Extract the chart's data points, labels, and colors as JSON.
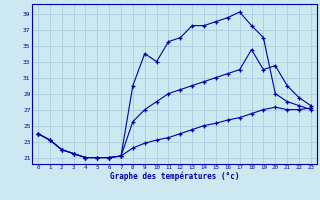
{
  "xlabel": "Graphe des températures (°c)",
  "bg_color": "#cce8f0",
  "grid_color": "#aaccdd",
  "line_color": "#0000aa",
  "x_ticks": [
    0,
    1,
    2,
    3,
    4,
    5,
    6,
    7,
    8,
    9,
    10,
    11,
    12,
    13,
    14,
    15,
    16,
    17,
    18,
    19,
    20,
    21,
    22,
    23
  ],
  "y_ticks": [
    21,
    23,
    25,
    27,
    29,
    31,
    33,
    35,
    37,
    39
  ],
  "ylim": [
    20.2,
    40.2
  ],
  "xlim": [
    -0.5,
    23.5
  ],
  "line1_x": [
    0,
    1,
    2,
    3,
    4,
    5,
    6,
    7,
    8,
    9,
    10,
    11,
    12,
    13,
    14,
    15,
    16,
    17,
    18,
    19,
    20,
    21,
    22,
    23
  ],
  "line1_y": [
    24.0,
    23.2,
    22.0,
    21.5,
    21.0,
    21.0,
    21.0,
    21.2,
    30.0,
    34.0,
    33.0,
    35.5,
    36.0,
    37.5,
    37.5,
    38.0,
    38.5,
    39.2,
    37.5,
    36.0,
    29.0,
    28.0,
    27.5,
    27.0
  ],
  "line2_x": [
    0,
    1,
    2,
    3,
    4,
    5,
    6,
    7,
    8,
    9,
    10,
    11,
    12,
    13,
    14,
    15,
    16,
    17,
    18,
    19,
    20,
    21,
    22,
    23
  ],
  "line2_y": [
    24.0,
    23.2,
    22.0,
    21.5,
    21.0,
    21.0,
    21.0,
    21.2,
    25.5,
    27.0,
    28.0,
    29.0,
    29.5,
    30.0,
    30.5,
    31.0,
    31.5,
    32.0,
    34.5,
    32.0,
    32.5,
    30.0,
    28.5,
    27.5
  ],
  "line3_x": [
    0,
    1,
    2,
    3,
    4,
    5,
    6,
    7,
    8,
    9,
    10,
    11,
    12,
    13,
    14,
    15,
    16,
    17,
    18,
    19,
    20,
    21,
    22,
    23
  ],
  "line3_y": [
    24.0,
    23.2,
    22.0,
    21.5,
    21.0,
    21.0,
    21.0,
    21.2,
    22.2,
    22.8,
    23.2,
    23.5,
    24.0,
    24.5,
    25.0,
    25.3,
    25.7,
    26.0,
    26.5,
    27.0,
    27.3,
    27.0,
    27.0,
    27.2
  ]
}
